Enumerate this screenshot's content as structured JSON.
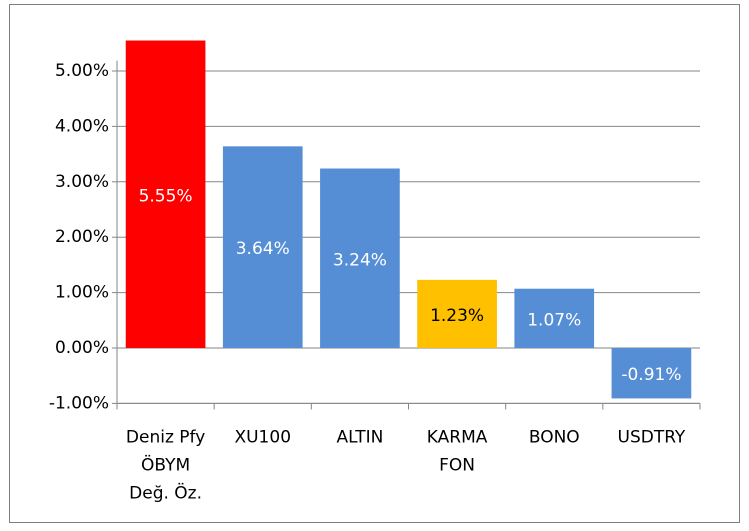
{
  "chart_data": {
    "type": "bar",
    "categories": [
      [
        "Deniz Pfy",
        "ÖBYM",
        "Değ. Öz."
      ],
      [
        "XU100"
      ],
      [
        "ALTIN"
      ],
      [
        "KARMA",
        "FON"
      ],
      [
        "BONO"
      ],
      [
        "USDTRY"
      ]
    ],
    "values": [
      5.55,
      3.64,
      3.24,
      1.23,
      1.07,
      -0.91
    ],
    "value_labels": [
      "5.55%",
      "3.64%",
      "3.24%",
      "1.23%",
      "1.07%",
      "-0.91%"
    ],
    "colors": [
      "#ff0000",
      "#558ed5",
      "#558ed5",
      "#ffc000",
      "#558ed5",
      "#558ed5"
    ],
    "label_colors": [
      "#ffffff",
      "#ffffff",
      "#ffffff",
      "#000000",
      "#ffffff",
      "#ffffff"
    ],
    "ylim": [
      -1,
      6
    ],
    "yticks": [
      {
        "value": -1,
        "label": "-1.00%"
      },
      {
        "value": 0,
        "label": "0.00%"
      },
      {
        "value": 1,
        "label": "1.00%"
      },
      {
        "value": 2,
        "label": "2.00%"
      },
      {
        "value": 3,
        "label": "3.00%"
      },
      {
        "value": 4,
        "label": "4.00%"
      },
      {
        "value": 5,
        "label": "5.00%"
      }
    ],
    "grid": true
  }
}
